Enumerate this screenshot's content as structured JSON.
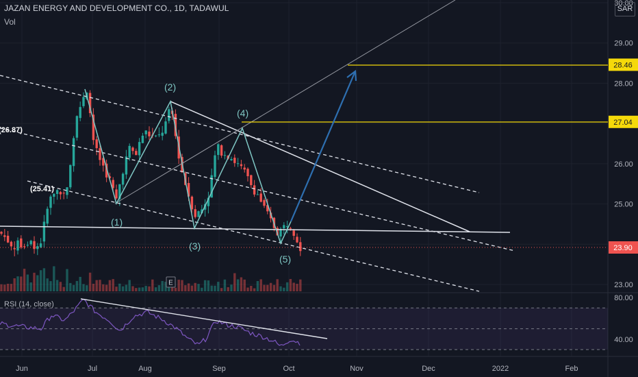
{
  "header": {
    "title": "JAZAN ENERGY AND DEVELOPMENT CO., 1D, TADAWUL",
    "volume_label": "Vol",
    "currency": "SAR"
  },
  "chart_data": [
    {
      "type": "candlestick",
      "ylim": [
        22.85,
        30.0
      ],
      "y_ticks": [
        "30.00",
        "29.00",
        "28.00",
        "27.00",
        "26.00",
        "25.00",
        "24.00",
        "23.00"
      ],
      "x_ticks": [
        "Jun",
        "Jul",
        "Aug",
        "Sep",
        "Oct",
        "Nov",
        "Dec",
        "2022",
        "Feb"
      ],
      "last_price": "23.90",
      "horizontal_levels": [
        {
          "label": "28.46",
          "value": 28.46,
          "color": "#f5d90a"
        },
        {
          "label": "27.04",
          "value": 27.04,
          "color": "#f5d90a"
        }
      ],
      "wave_labels": [
        "(1)",
        "(2)",
        "(3)",
        "(4)",
        "(5)"
      ],
      "left_labels": [
        "(26.87)",
        "(25.41)"
      ],
      "event_marker": "E",
      "colors": {
        "up": "#26a69a",
        "down": "#ef5350",
        "wave": "#7fc7c4",
        "projection": "#2962ff",
        "trend": "#e0e3eb"
      }
    },
    {
      "type": "line",
      "title": "RSI (14, close)",
      "ylim": [
        30,
        80
      ],
      "y_ticks": [
        "80.00",
        "40.00"
      ],
      "bands": [
        70,
        30
      ],
      "color": "#7e57c2"
    }
  ]
}
